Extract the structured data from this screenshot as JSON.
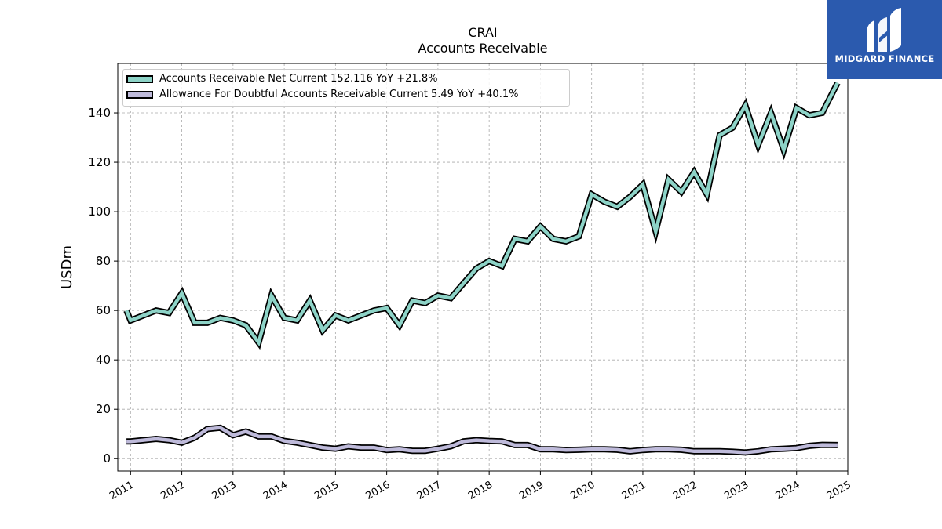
{
  "title": "CRAI",
  "subtitle": "Accounts Receivable",
  "logo": {
    "text": "MIDGARD FINANCE",
    "bg_color": "#2b5aae"
  },
  "chart_data": {
    "type": "line",
    "ylabel": "USDm",
    "xlabel": "",
    "ylim": [
      -5,
      160
    ],
    "xlim": [
      2010.75,
      2025.0
    ],
    "yticks": [
      0,
      20,
      40,
      60,
      80,
      100,
      120,
      140
    ],
    "xticks": [
      "2011",
      "2012",
      "2013",
      "2014",
      "2015",
      "2016",
      "2017",
      "2018",
      "2019",
      "2020",
      "2021",
      "2022",
      "2023",
      "2024",
      "2025"
    ],
    "grid": true,
    "legend_position": "top-left",
    "series": [
      {
        "name": "Accounts Receivable Net Current  152.116 YoY +21.8%",
        "color": "#8dd3c7",
        "x": [
          2010.92,
          2011.0,
          2011.25,
          2011.5,
          2011.75,
          2012.0,
          2012.25,
          2012.5,
          2012.75,
          2013.0,
          2013.25,
          2013.5,
          2013.75,
          2014.0,
          2014.25,
          2014.5,
          2014.75,
          2015.0,
          2015.25,
          2015.5,
          2015.75,
          2016.0,
          2016.25,
          2016.5,
          2016.75,
          2017.0,
          2017.25,
          2017.5,
          2017.75,
          2018.0,
          2018.25,
          2018.5,
          2018.75,
          2019.0,
          2019.25,
          2019.5,
          2019.75,
          2020.0,
          2020.25,
          2020.5,
          2020.75,
          2021.0,
          2021.25,
          2021.5,
          2021.75,
          2022.0,
          2022.25,
          2022.5,
          2022.75,
          2023.0,
          2023.25,
          2023.5,
          2023.75,
          2024.0,
          2024.25,
          2024.5,
          2024.8
        ],
        "values": [
          60,
          56,
          58,
          60,
          59,
          67,
          55,
          55,
          57,
          56,
          54,
          47,
          66,
          57,
          56,
          64,
          52,
          58,
          56,
          58,
          60,
          61,
          54,
          64,
          63,
          66,
          65,
          71,
          77,
          80,
          78,
          89,
          88,
          94,
          89,
          88,
          90,
          107,
          104,
          102,
          106,
          111,
          92,
          113,
          108,
          116,
          107,
          131,
          134,
          143,
          127,
          140,
          125,
          142,
          139,
          140,
          152.116
        ]
      },
      {
        "name": "Allowance For Doubtful Accounts Receivable Current  5.49 YoY +40.1%",
        "color": "#bebada",
        "x": [
          2010.92,
          2011.0,
          2011.25,
          2011.5,
          2011.75,
          2012.0,
          2012.25,
          2012.5,
          2012.75,
          2013.0,
          2013.25,
          2013.5,
          2013.75,
          2014.0,
          2014.25,
          2014.5,
          2014.75,
          2015.0,
          2015.25,
          2015.5,
          2015.75,
          2016.0,
          2016.25,
          2016.5,
          2016.75,
          2017.0,
          2017.25,
          2017.5,
          2017.75,
          2018.0,
          2018.25,
          2018.5,
          2018.75,
          2019.0,
          2019.25,
          2019.5,
          2019.75,
          2020.0,
          2020.25,
          2020.5,
          2020.75,
          2021.0,
          2021.25,
          2021.5,
          2021.75,
          2022.0,
          2022.25,
          2022.5,
          2022.75,
          2023.0,
          2023.25,
          2023.5,
          2023.75,
          2024.0,
          2024.25,
          2024.5,
          2024.8
        ],
        "values": [
          7,
          7,
          7.5,
          8,
          7.5,
          6.5,
          8.5,
          12,
          12.5,
          9.5,
          11,
          9,
          9,
          7.2,
          6.5,
          5.5,
          4.5,
          4,
          5,
          4.5,
          4.5,
          3.5,
          3.8,
          3.2,
          3.2,
          4,
          5,
          7,
          7.5,
          7.2,
          7,
          5.5,
          5.5,
          3.8,
          3.8,
          3.5,
          3.6,
          3.8,
          3.8,
          3.6,
          3,
          3.5,
          3.8,
          3.8,
          3.6,
          3,
          3,
          3,
          2.8,
          2.5,
          3,
          3.8,
          4,
          4.3,
          5.2,
          5.6,
          5.49
        ]
      }
    ]
  }
}
